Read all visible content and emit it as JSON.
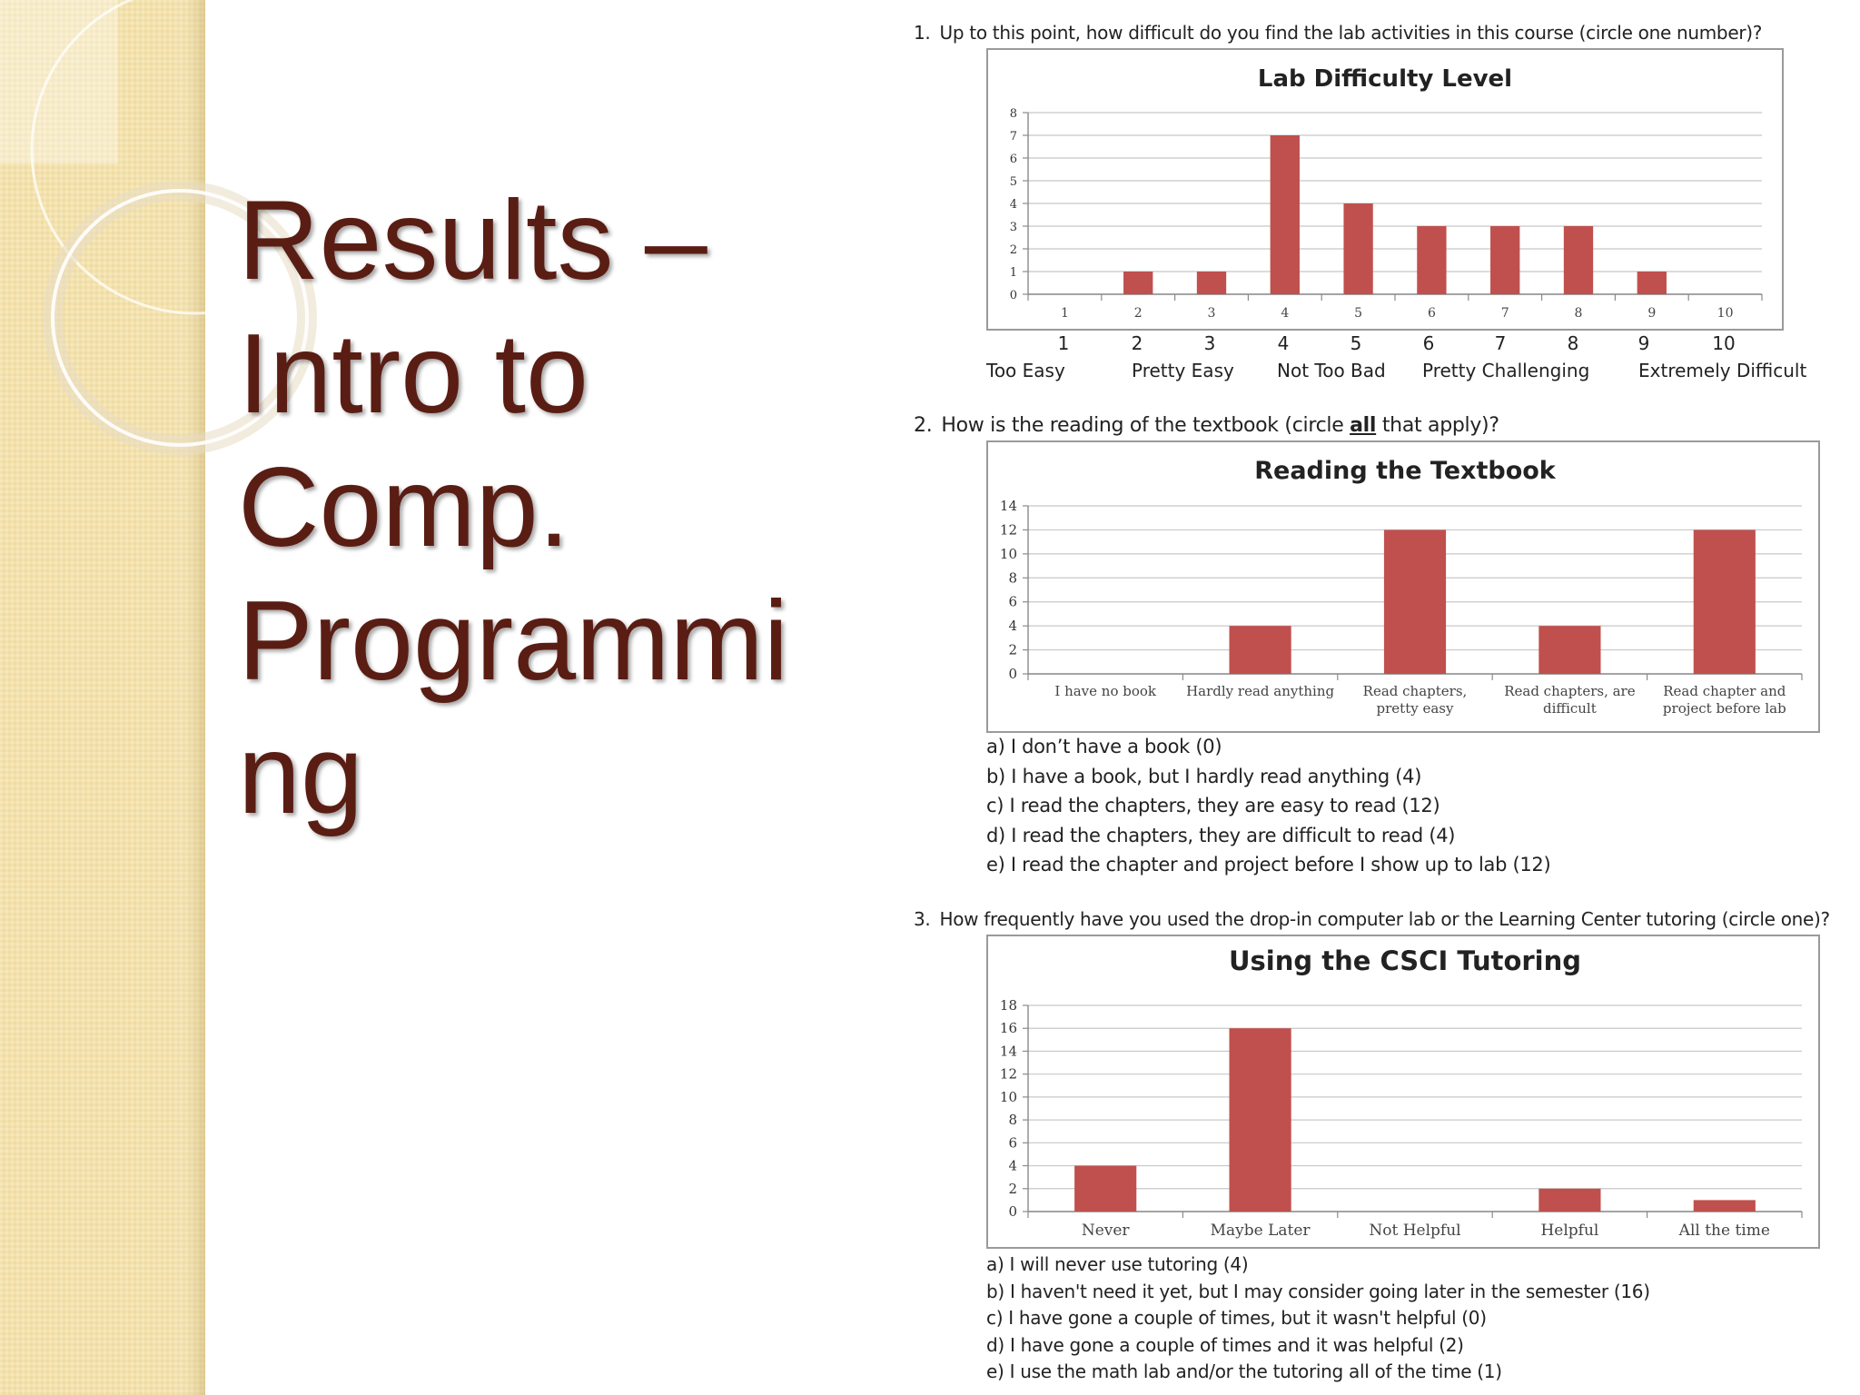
{
  "slide": {
    "title_lines": [
      "Results –",
      "Intro to",
      "Comp.",
      "Programmi",
      "ng"
    ],
    "colors": {
      "title": "#5a1d13",
      "bar": "#c0504d",
      "panel": "#f4e4b2"
    }
  },
  "q1": {
    "number": "1.",
    "text": "Up to this point, how difficult do you find the lab activities in this course (circle one number)?",
    "scale_numbers": [
      "1",
      "2",
      "3",
      "4",
      "5",
      "6",
      "7",
      "8",
      "9",
      "10"
    ],
    "scale_descriptors": [
      "Too Easy",
      "Pretty Easy",
      "Not Too Bad",
      "Pretty Challenging",
      "Extremely Difficult"
    ]
  },
  "q2": {
    "number": "2.",
    "text_before": "How is the reading of the textbook (circle ",
    "text_emph": "all",
    "text_after": " that apply)?",
    "answers": [
      "a) I don’t have a book (0)",
      "b) I have a book,  but I hardly read anything (4)",
      "c) I read the chapters, they are easy to read (12)",
      "d) I read the chapters, they are difficult to read (4)",
      "e) I read the chapter and project before I show up to lab (12)"
    ]
  },
  "q3": {
    "number": "3.",
    "text": "How frequently have you used the drop-in computer lab or the Learning Center tutoring (circle one)?",
    "answers": [
      "a) I will never use tutoring  (4)",
      "b) I haven't need it yet, but I may consider going later in the semester (16)",
      "c) I have gone a couple of times, but it wasn't helpful (0)",
      "d) I have gone a couple of times and it was helpful (2)",
      "e) I use the math lab and/or the tutoring all of the time (1)"
    ]
  },
  "chart_data": [
    {
      "type": "bar",
      "title": "Lab Difficulty Level",
      "categories": [
        "1",
        "2",
        "3",
        "4",
        "5",
        "6",
        "7",
        "8",
        "9",
        "10"
      ],
      "values": [
        0,
        1,
        1,
        7,
        4,
        3,
        3,
        3,
        1,
        0
      ],
      "yticks": [
        0,
        1,
        2,
        3,
        4,
        5,
        6,
        7,
        8
      ],
      "ylim": [
        0,
        8
      ],
      "grid": true,
      "legend": "none",
      "bar_color": "#c0504d"
    },
    {
      "type": "bar",
      "title": "Reading the Textbook",
      "categories": [
        "I have no book",
        "Hardly read anything",
        "Read chapters, pretty easy",
        "Read chapters, are difficult",
        "Read chapter and project before lab"
      ],
      "values": [
        0,
        4,
        12,
        4,
        12
      ],
      "yticks": [
        0,
        2,
        4,
        6,
        8,
        10,
        12,
        14
      ],
      "ylim": [
        0,
        14
      ],
      "grid": true,
      "legend": "none",
      "bar_color": "#c0504d"
    },
    {
      "type": "bar",
      "title": "Using the CSCI Tutoring",
      "categories": [
        "Never",
        "Maybe Later",
        "Not Helpful",
        "Helpful",
        "All the time"
      ],
      "values": [
        4,
        16,
        0,
        2,
        1
      ],
      "yticks": [
        0,
        2,
        4,
        6,
        8,
        10,
        12,
        14,
        16,
        18
      ],
      "ylim": [
        0,
        18
      ],
      "grid": true,
      "legend": "none",
      "bar_color": "#c0504d"
    }
  ]
}
